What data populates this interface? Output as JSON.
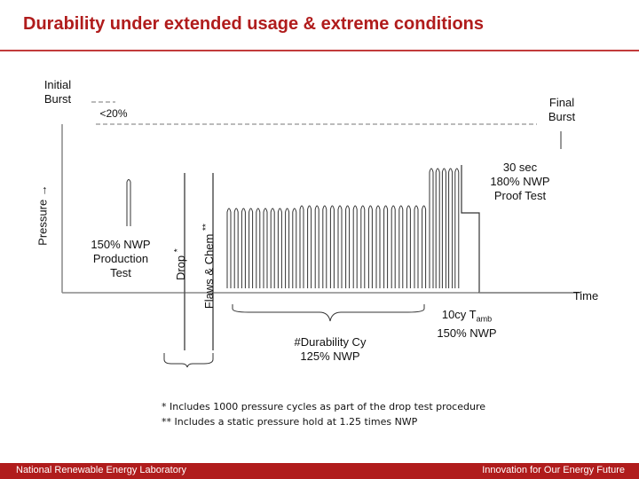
{
  "title": "Durability under extended usage & extreme conditions",
  "labels": {
    "initial_burst": "Initial\nBurst",
    "less_20": "<20%",
    "final_burst": "Final\nBurst",
    "pressure_axis": "Pressure →",
    "time_axis": "Time",
    "production_test": "150% NWP\nProduction\nTest",
    "drop": "Drop",
    "drop_mark": "*",
    "flaws_chem": "Flaws & Chem",
    "flaws_mark": "**",
    "proof_test": "30 sec\n180% NWP\nProof Test",
    "durability": "#Durability Cy\n125% NWP",
    "tamb_prefix": "10cy T",
    "tamb_sub": "amb",
    "tamb_nwp": "150% NWP"
  },
  "notes": {
    "note1": "*   Includes 1000 pressure cycles as part of the drop test procedure",
    "note2": "**  Includes a static pressure hold at 1.25 times NWP"
  },
  "footer": {
    "left": "National Renewable Energy Laboratory",
    "right": "Innovation for Our Energy Future"
  }
}
